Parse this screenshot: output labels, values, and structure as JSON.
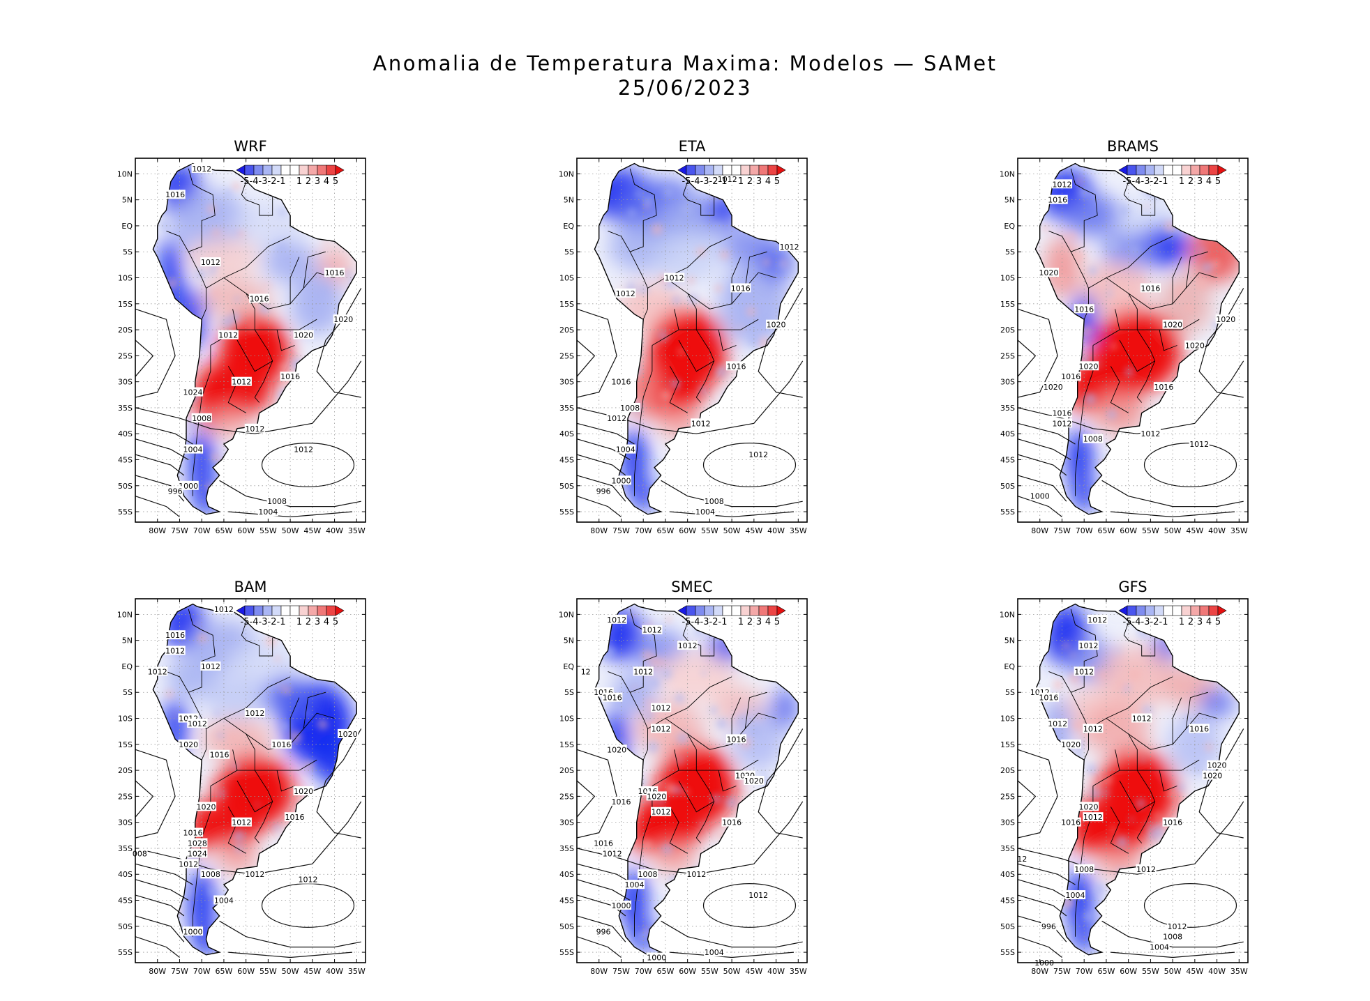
{
  "title": {
    "line1": "Anomalia de Temperatura Maxima: Modelos — SAMet",
    "line2": "25/06/2023"
  },
  "colors": {
    "cold": "#1a2ff0",
    "warm": "#ee1111",
    "colorbar": [
      "#1a1ae6",
      "#4a55ee",
      "#7f8cf0",
      "#aab6f4",
      "#d2daf8",
      "#ffffff",
      "#ffffff",
      "#f8d2d2",
      "#f4a8a8",
      "#f07878",
      "#ec4444",
      "#e61010"
    ]
  },
  "chart_data": [
    {
      "type": "heatmap",
      "title": "WRF",
      "x_ticks": [
        "80W",
        "75W",
        "70W",
        "65W",
        "60W",
        "55W",
        "50W",
        "45W",
        "40W",
        "35W"
      ],
      "y_ticks": [
        "10N",
        "5N",
        "EQ",
        "5S",
        "10S",
        "15S",
        "20S",
        "25S",
        "30S",
        "35S",
        "40S",
        "45S",
        "50S",
        "55S"
      ],
      "xlim": [
        -85,
        -33
      ],
      "ylim": [
        -57,
        13
      ],
      "colorbar_labels": [
        "-5",
        "-4",
        "-3",
        "-2",
        "-1",
        "1",
        "2",
        "3",
        "4",
        "5"
      ],
      "isobar_labels": [
        {
          "text": "1012",
          "lon": -70,
          "lat": 11
        },
        {
          "text": "1016",
          "lon": -76,
          "lat": 6
        },
        {
          "text": "1012",
          "lon": -68,
          "lat": -7
        },
        {
          "text": "1016",
          "lon": -57,
          "lat": -14
        },
        {
          "text": "1016",
          "lon": -40,
          "lat": -9
        },
        {
          "text": "1020",
          "lon": -38,
          "lat": -18
        },
        {
          "text": "1020",
          "lon": -47,
          "lat": -21
        },
        {
          "text": "1012",
          "lon": -64,
          "lat": -21
        },
        {
          "text": "1016",
          "lon": -50,
          "lat": -29
        },
        {
          "text": "1012",
          "lon": -61,
          "lat": -30
        },
        {
          "text": "1024",
          "lon": -72,
          "lat": -32
        },
        {
          "text": "1008",
          "lon": -70,
          "lat": -37
        },
        {
          "text": "1004",
          "lon": -72,
          "lat": -43
        },
        {
          "text": "1012",
          "lon": -58,
          "lat": -39
        },
        {
          "text": "1012",
          "lon": -47,
          "lat": -43
        },
        {
          "text": "1000",
          "lon": -73,
          "lat": -50
        },
        {
          "text": "996",
          "lon": -76,
          "lat": -51
        },
        {
          "text": "1008",
          "lon": -53,
          "lat": -53
        },
        {
          "text": "1004",
          "lon": -55,
          "lat": -55
        }
      ],
      "anomaly_summary": {
        "north": -1.5,
        "northwest": -2.5,
        "central_south": 4.0,
        "patagonia_west": -3.0
      }
    },
    {
      "type": "heatmap",
      "title": "ETA",
      "x_ticks": [
        "80W",
        "75W",
        "70W",
        "65W",
        "60W",
        "55W",
        "50W",
        "45W",
        "40W",
        "35W"
      ],
      "y_ticks": [
        "10N",
        "5N",
        "EQ",
        "5S",
        "10S",
        "15S",
        "20S",
        "25S",
        "30S",
        "35S",
        "40S",
        "45S",
        "50S",
        "55S"
      ],
      "xlim": [
        -85,
        -33
      ],
      "ylim": [
        -57,
        13
      ],
      "colorbar_labels": [
        "-5",
        "-4",
        "-3",
        "-2",
        "-1",
        "1",
        "2",
        "3",
        "4",
        "5"
      ],
      "isobar_labels": [
        {
          "text": "1012",
          "lon": -51,
          "lat": 9
        },
        {
          "text": "1012",
          "lon": -37,
          "lat": -4
        },
        {
          "text": "1012",
          "lon": -74,
          "lat": -13
        },
        {
          "text": "1012",
          "lon": -63,
          "lat": -10
        },
        {
          "text": "1016",
          "lon": -48,
          "lat": -12
        },
        {
          "text": "1020",
          "lon": -40,
          "lat": -19
        },
        {
          "text": "1016",
          "lon": -49,
          "lat": -27
        },
        {
          "text": "1016",
          "lon": -75,
          "lat": -30
        },
        {
          "text": "1008",
          "lon": -73,
          "lat": -35
        },
        {
          "text": "1012",
          "lon": -76,
          "lat": -37
        },
        {
          "text": "1012",
          "lon": -57,
          "lat": -38
        },
        {
          "text": "1004",
          "lon": -74,
          "lat": -43
        },
        {
          "text": "1012",
          "lon": -44,
          "lat": -44
        },
        {
          "text": "1000",
          "lon": -75,
          "lat": -49
        },
        {
          "text": "996",
          "lon": -79,
          "lat": -51
        },
        {
          "text": "1008",
          "lon": -54,
          "lat": -53
        },
        {
          "text": "1004",
          "lon": -56,
          "lat": -55
        }
      ],
      "anomaly_summary": {
        "north": -3.0,
        "northwest": -3.5,
        "central_south": 4.0,
        "patagonia_west": -3.5
      }
    },
    {
      "type": "heatmap",
      "title": "BRAMS",
      "x_ticks": [
        "80W",
        "75W",
        "70W",
        "65W",
        "60W",
        "55W",
        "50W",
        "45W",
        "40W",
        "35W"
      ],
      "y_ticks": [
        "10N",
        "5N",
        "EQ",
        "5S",
        "10S",
        "15S",
        "20S",
        "25S",
        "30S",
        "35S",
        "40S",
        "45S",
        "50S",
        "55S"
      ],
      "xlim": [
        -85,
        -33
      ],
      "ylim": [
        -57,
        13
      ],
      "colorbar_labels": [
        "-5",
        "-4",
        "-3",
        "-2",
        "-1",
        "1",
        "2",
        "3",
        "4",
        "5"
      ],
      "isobar_labels": [
        {
          "text": "1012",
          "lon": -75,
          "lat": 8
        },
        {
          "text": "1016",
          "lon": -76,
          "lat": 5
        },
        {
          "text": "1020",
          "lon": -78,
          "lat": -9
        },
        {
          "text": "1016",
          "lon": -70,
          "lat": -16
        },
        {
          "text": "1016",
          "lon": -55,
          "lat": -12
        },
        {
          "text": "1020",
          "lon": -38,
          "lat": -18
        },
        {
          "text": "1020",
          "lon": -50,
          "lat": -19
        },
        {
          "text": "1020",
          "lon": -45,
          "lat": -23
        },
        {
          "text": "1020",
          "lon": -69,
          "lat": -27
        },
        {
          "text": "1016",
          "lon": -73,
          "lat": -29
        },
        {
          "text": "1020",
          "lon": -77,
          "lat": -31
        },
        {
          "text": "1016",
          "lon": -52,
          "lat": -31
        },
        {
          "text": "1016",
          "lon": -75,
          "lat": -36
        },
        {
          "text": "1012",
          "lon": -75,
          "lat": -38
        },
        {
          "text": "1008",
          "lon": -68,
          "lat": -41
        },
        {
          "text": "1012",
          "lon": -55,
          "lat": -40
        },
        {
          "text": "1012",
          "lon": -44,
          "lat": -42
        },
        {
          "text": "1000",
          "lon": -80,
          "lat": -52
        }
      ],
      "anomaly_summary": {
        "north": 1.0,
        "northwest": -3.0,
        "central_south": 4.0,
        "patagonia_west": -4.0
      }
    },
    {
      "type": "heatmap",
      "title": "BAM",
      "x_ticks": [
        "80W",
        "75W",
        "70W",
        "65W",
        "60W",
        "55W",
        "50W",
        "45W",
        "40W",
        "35W"
      ],
      "y_ticks": [
        "10N",
        "5N",
        "EQ",
        "5S",
        "10S",
        "15S",
        "20S",
        "25S",
        "30S",
        "35S",
        "40S",
        "45S",
        "50S",
        "55S"
      ],
      "xlim": [
        -85,
        -33
      ],
      "ylim": [
        -57,
        13
      ],
      "colorbar_labels": [
        "-5",
        "-4",
        "-3",
        "-2",
        "-1",
        "1",
        "2",
        "3",
        "4",
        "5"
      ],
      "isobar_labels": [
        {
          "text": "1012",
          "lon": -65,
          "lat": 11
        },
        {
          "text": "1016",
          "lon": -76,
          "lat": 6
        },
        {
          "text": "1012",
          "lon": -76,
          "lat": 3
        },
        {
          "text": "1012",
          "lon": -80,
          "lat": -1
        },
        {
          "text": "1012",
          "lon": -68,
          "lat": 0
        },
        {
          "text": "1012",
          "lon": -58,
          "lat": -9
        },
        {
          "text": "1012",
          "lon": -73,
          "lat": -10
        },
        {
          "text": "1012",
          "lon": -71,
          "lat": -11
        },
        {
          "text": "1020",
          "lon": -37,
          "lat": -13
        },
        {
          "text": "1016",
          "lon": -52,
          "lat": -15
        },
        {
          "text": "1020",
          "lon": -73,
          "lat": -15
        },
        {
          "text": "1016",
          "lon": -66,
          "lat": -17
        },
        {
          "text": "1020",
          "lon": -47,
          "lat": -24
        },
        {
          "text": "1020",
          "lon": -69,
          "lat": -27
        },
        {
          "text": "1016",
          "lon": -49,
          "lat": -29
        },
        {
          "text": "1012",
          "lon": -61,
          "lat": -30
        },
        {
          "text": "1016",
          "lon": -72,
          "lat": -32
        },
        {
          "text": "1028",
          "lon": -71,
          "lat": -34
        },
        {
          "text": "1024",
          "lon": -71,
          "lat": -36
        },
        {
          "text": "1012",
          "lon": -73,
          "lat": -38
        },
        {
          "text": "1008",
          "lon": -68,
          "lat": -40
        },
        {
          "text": "1012",
          "lon": -58,
          "lat": -40
        },
        {
          "text": "1004",
          "lon": -65,
          "lat": -45
        },
        {
          "text": "1012",
          "lon": -46,
          "lat": -41
        },
        {
          "text": "008",
          "lon": -84,
          "lat": -36
        },
        {
          "text": "1000",
          "lon": -72,
          "lat": -51
        }
      ],
      "anomaly_summary": {
        "north": -1.5,
        "northwest": -2.0,
        "northeast": -4.5,
        "central_south": 4.0,
        "patagonia_west": -3.5
      }
    },
    {
      "type": "heatmap",
      "title": "SMEC",
      "x_ticks": [
        "80W",
        "75W",
        "70W",
        "65W",
        "60W",
        "55W",
        "50W",
        "45W",
        "40W",
        "35W"
      ],
      "y_ticks": [
        "10N",
        "5N",
        "EQ",
        "5S",
        "10S",
        "15S",
        "20S",
        "25S",
        "30S",
        "35S",
        "40S",
        "45S",
        "50S",
        "55S"
      ],
      "xlim": [
        -85,
        -33
      ],
      "ylim": [
        -57,
        13
      ],
      "colorbar_labels": [
        "-5",
        "-4",
        "-3",
        "-2",
        "-1",
        "1",
        "2",
        "3",
        "4",
        "5"
      ],
      "isobar_labels": [
        {
          "text": "1012",
          "lon": -76,
          "lat": 9
        },
        {
          "text": "1012",
          "lon": -68,
          "lat": 7
        },
        {
          "text": "1012",
          "lon": -60,
          "lat": 4
        },
        {
          "text": "1012",
          "lon": -70,
          "lat": -1
        },
        {
          "text": "12",
          "lon": -83,
          "lat": -1
        },
        {
          "text": "1016",
          "lon": -79,
          "lat": -5
        },
        {
          "text": "1016",
          "lon": -77,
          "lat": -6
        },
        {
          "text": "1012",
          "lon": -66,
          "lat": -8
        },
        {
          "text": "1012",
          "lon": -66,
          "lat": -12
        },
        {
          "text": "1016",
          "lon": -49,
          "lat": -14
        },
        {
          "text": "1020",
          "lon": -76,
          "lat": -16
        },
        {
          "text": "1020",
          "lon": -47,
          "lat": -21
        },
        {
          "text": "1020",
          "lon": -45,
          "lat": -22
        },
        {
          "text": "1016",
          "lon": -69,
          "lat": -24
        },
        {
          "text": "1020",
          "lon": -67,
          "lat": -25
        },
        {
          "text": "1016",
          "lon": -75,
          "lat": -26
        },
        {
          "text": "1012",
          "lon": -66,
          "lat": -28
        },
        {
          "text": "1016",
          "lon": -50,
          "lat": -30
        },
        {
          "text": "1016",
          "lon": -79,
          "lat": -34
        },
        {
          "text": "1012",
          "lon": -77,
          "lat": -36
        },
        {
          "text": "1008",
          "lon": -69,
          "lat": -40
        },
        {
          "text": "1004",
          "lon": -72,
          "lat": -42
        },
        {
          "text": "1012",
          "lon": -58,
          "lat": -40
        },
        {
          "text": "1000",
          "lon": -75,
          "lat": -46
        },
        {
          "text": "996",
          "lon": -79,
          "lat": -51
        },
        {
          "text": "1012",
          "lon": -44,
          "lat": -44
        },
        {
          "text": "1004",
          "lon": -54,
          "lat": -55
        },
        {
          "text": "1000",
          "lon": -67,
          "lat": -56
        }
      ],
      "anomaly_summary": {
        "north": 1.5,
        "northwest": -3.0,
        "central_south": 4.0,
        "patagonia_west": -3.5
      }
    },
    {
      "type": "heatmap",
      "title": "GFS",
      "x_ticks": [
        "80W",
        "75W",
        "70W",
        "65W",
        "60W",
        "55W",
        "50W",
        "45W",
        "40W",
        "35W"
      ],
      "y_ticks": [
        "10N",
        "5N",
        "EQ",
        "5S",
        "10S",
        "15S",
        "20S",
        "25S",
        "30S",
        "35S",
        "40S",
        "45S",
        "50S",
        "55S"
      ],
      "xlim": [
        -85,
        -33
      ],
      "ylim": [
        -57,
        13
      ],
      "colorbar_labels": [
        "-5",
        "-4",
        "-3",
        "-2",
        "-1",
        "1",
        "2",
        "3",
        "4",
        "5"
      ],
      "isobar_labels": [
        {
          "text": "1012",
          "lon": -67,
          "lat": 9
        },
        {
          "text": "1012",
          "lon": -69,
          "lat": 4
        },
        {
          "text": "1012",
          "lon": -70,
          "lat": -1
        },
        {
          "text": "1012",
          "lon": -80,
          "lat": -5
        },
        {
          "text": "1016",
          "lon": -78,
          "lat": -6
        },
        {
          "text": "1012",
          "lon": -57,
          "lat": -10
        },
        {
          "text": "1012",
          "lon": -76,
          "lat": -11
        },
        {
          "text": "1012",
          "lon": -68,
          "lat": -12
        },
        {
          "text": "1020",
          "lon": -73,
          "lat": -15
        },
        {
          "text": "1016",
          "lon": -44,
          "lat": -12
        },
        {
          "text": "1020",
          "lon": -40,
          "lat": -19
        },
        {
          "text": "1020",
          "lon": -41,
          "lat": -21
        },
        {
          "text": "1020",
          "lon": -69,
          "lat": -27
        },
        {
          "text": "1012",
          "lon": -68,
          "lat": -29
        },
        {
          "text": "1016",
          "lon": -73,
          "lat": -30
        },
        {
          "text": "1016",
          "lon": -50,
          "lat": -30
        },
        {
          "text": "12",
          "lon": -84,
          "lat": -37
        },
        {
          "text": "1008",
          "lon": -70,
          "lat": -39
        },
        {
          "text": "1012",
          "lon": -56,
          "lat": -39
        },
        {
          "text": "1004",
          "lon": -72,
          "lat": -44
        },
        {
          "text": "996",
          "lon": -78,
          "lat": -50
        },
        {
          "text": "1012",
          "lon": -49,
          "lat": -50
        },
        {
          "text": "1008",
          "lon": -50,
          "lat": -52
        },
        {
          "text": "1004",
          "lon": -53,
          "lat": -54
        },
        {
          "text": "1000",
          "lon": -79,
          "lat": -57
        }
      ],
      "anomaly_summary": {
        "north": 1.0,
        "northwest": -3.5,
        "central_south": 4.0,
        "patagonia_west": -3.0
      }
    }
  ]
}
